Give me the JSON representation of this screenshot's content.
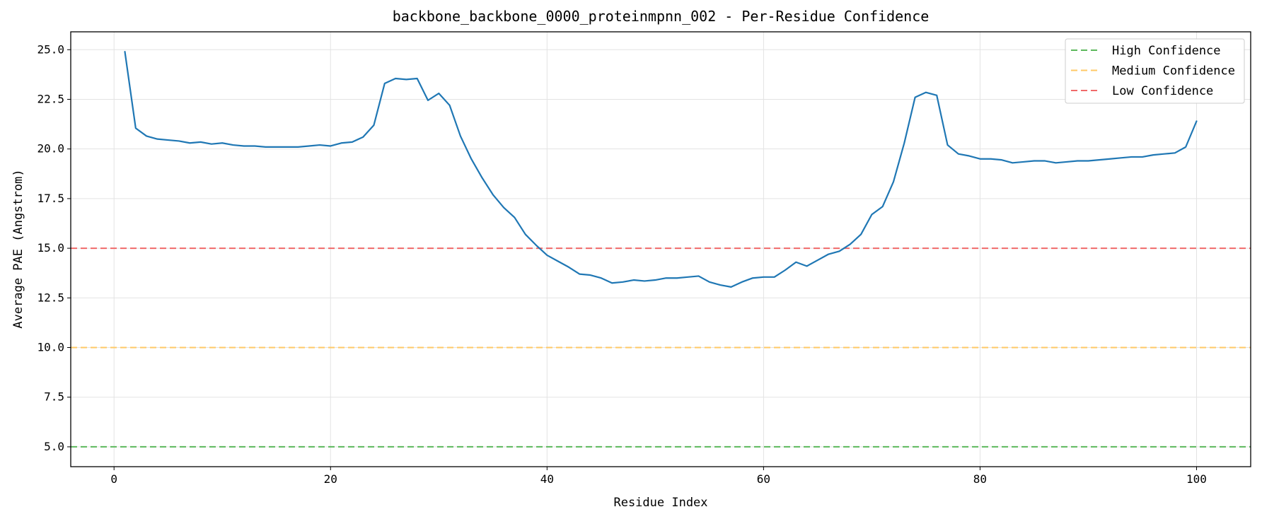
{
  "chart_data": {
    "type": "line",
    "title": "backbone_backbone_0000_proteinmpnn_002 - Per-Residue Confidence",
    "xlabel": "Residue Index",
    "ylabel": "Average PAE (Angstrom)",
    "xlim": [
      -4,
      105
    ],
    "ylim": [
      4.0,
      25.9
    ],
    "xticks": [
      0,
      20,
      40,
      60,
      80,
      100
    ],
    "xtick_labels": [
      "0",
      "20",
      "40",
      "60",
      "80",
      "100"
    ],
    "yticks": [
      5.0,
      7.5,
      10.0,
      12.5,
      15.0,
      17.5,
      20.0,
      22.5,
      25.0
    ],
    "ytick_labels": [
      "5.0",
      "7.5",
      "10.0",
      "12.5",
      "15.0",
      "17.5",
      "20.0",
      "22.5",
      "25.0"
    ],
    "grid": true,
    "legend_position": "top-right",
    "series": [
      {
        "name": "",
        "color": "#1f77b4",
        "x": [
          1,
          2,
          3,
          4,
          5,
          6,
          7,
          8,
          9,
          10,
          11,
          12,
          13,
          14,
          15,
          16,
          17,
          18,
          19,
          20,
          21,
          22,
          23,
          24,
          25,
          26,
          27,
          28,
          29,
          30,
          31,
          32,
          33,
          34,
          35,
          36,
          37,
          38,
          39,
          40,
          41,
          42,
          43,
          44,
          45,
          46,
          47,
          48,
          49,
          50,
          51,
          52,
          53,
          54,
          55,
          56,
          57,
          58,
          59,
          60,
          61,
          62,
          63,
          64,
          65,
          66,
          67,
          68,
          69,
          70,
          71,
          72,
          73,
          74,
          75,
          76,
          77,
          78,
          79,
          80,
          81,
          82,
          83,
          84,
          85,
          86,
          87,
          88,
          89,
          90,
          91,
          92,
          93,
          94,
          95,
          96,
          97,
          98,
          99,
          100
        ],
        "y": [
          24.9,
          21.05,
          20.65,
          20.5,
          20.45,
          20.4,
          20.3,
          20.35,
          20.25,
          20.3,
          20.2,
          20.15,
          20.15,
          20.1,
          20.1,
          20.1,
          20.1,
          20.15,
          20.2,
          20.15,
          20.3,
          20.35,
          20.6,
          21.2,
          23.3,
          23.55,
          23.5,
          23.55,
          22.45,
          22.8,
          22.2,
          20.65,
          19.5,
          18.55,
          17.7,
          17.05,
          16.55,
          15.7,
          15.15,
          14.65,
          14.35,
          14.05,
          13.7,
          13.65,
          13.5,
          13.25,
          13.3,
          13.4,
          13.35,
          13.4,
          13.5,
          13.5,
          13.55,
          13.6,
          13.3,
          13.15,
          13.05,
          13.3,
          13.5,
          13.55,
          13.55,
          13.9,
          14.3,
          14.1,
          14.4,
          14.7,
          14.85,
          15.2,
          15.7,
          16.7,
          17.1,
          18.35,
          20.3,
          22.6,
          22.85,
          22.7,
          20.2,
          19.75,
          19.65,
          19.5,
          19.5,
          19.45,
          19.3,
          19.35,
          19.4,
          19.4,
          19.3,
          19.35,
          19.4,
          19.4,
          19.45,
          19.5,
          19.55,
          19.6,
          19.6,
          19.7,
          19.75,
          19.8,
          20.1,
          21.4
        ]
      }
    ],
    "reference_lines": [
      {
        "name": "High Confidence",
        "y": 5.0,
        "color": "#5cb85c"
      },
      {
        "name": "Medium Confidence",
        "y": 10.0,
        "color": "#ffc966"
      },
      {
        "name": "Low Confidence",
        "y": 15.0,
        "color": "#f06a6a"
      }
    ]
  }
}
